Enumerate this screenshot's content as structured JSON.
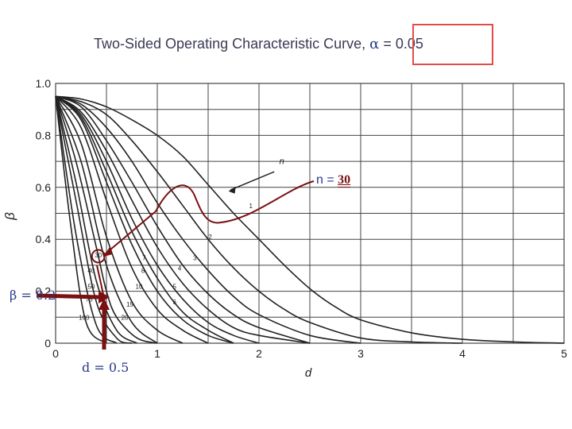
{
  "title_prefix": "Two-Sided Operating Characteristic Curve,",
  "title_alpha_symbol": "α",
  "title_alpha_value": " = 0.05",
  "annotation_n_prefix": "n = ",
  "annotation_n_value": "30",
  "annotation_beta": "β = 0.2",
  "annotation_d": "d = 0.5",
  "colors": {
    "curve": "#222222",
    "grid": "#444444",
    "annotation": "#7a1010",
    "annotation_text": "#283a8a",
    "highlight_box": "#e34b4b"
  },
  "chart_data": {
    "type": "line",
    "title": "Two-Sided Operating Characteristic Curve, α = 0.05",
    "xlabel": "d",
    "ylabel": "β",
    "xlim": [
      0,
      5
    ],
    "ylim": [
      0,
      1.0
    ],
    "x_ticks": [
      "0",
      "1",
      "2",
      "3",
      "4",
      "5"
    ],
    "y_ticks": [
      "0",
      "0.2",
      "0.4",
      "0.6",
      "0.8",
      "1.0"
    ],
    "grid": true,
    "arrow_label": "n",
    "series": [
      {
        "name": "1",
        "x": [
          0,
          0.25,
          0.5,
          0.75,
          1.0,
          1.25,
          1.5,
          1.75,
          2.0,
          2.25,
          2.5,
          2.75,
          3.0,
          3.5,
          4.0,
          4.5,
          5.0
        ],
        "values": [
          0.95,
          0.94,
          0.91,
          0.86,
          0.8,
          0.72,
          0.61,
          0.5,
          0.4,
          0.3,
          0.21,
          0.14,
          0.09,
          0.04,
          0.015,
          0.005,
          0
        ]
      },
      {
        "name": "2",
        "x": [
          0,
          0.25,
          0.5,
          0.75,
          1.0,
          1.25,
          1.5,
          1.75,
          2.0,
          2.25,
          2.5,
          3.0,
          3.5,
          4.0
        ],
        "values": [
          0.95,
          0.93,
          0.88,
          0.78,
          0.66,
          0.53,
          0.4,
          0.29,
          0.2,
          0.13,
          0.08,
          0.02,
          0.005,
          0
        ]
      },
      {
        "name": "3",
        "x": [
          0,
          0.25,
          0.5,
          0.75,
          1.0,
          1.25,
          1.5,
          1.75,
          2.0,
          2.5,
          3.0
        ],
        "values": [
          0.95,
          0.92,
          0.83,
          0.7,
          0.54,
          0.4,
          0.28,
          0.18,
          0.11,
          0.03,
          0
        ]
      },
      {
        "name": "4",
        "x": [
          0,
          0.25,
          0.5,
          0.75,
          1.0,
          1.25,
          1.5,
          1.75,
          2.0,
          2.5
        ],
        "values": [
          0.95,
          0.91,
          0.78,
          0.62,
          0.45,
          0.3,
          0.19,
          0.11,
          0.06,
          0
        ]
      },
      {
        "name": "5",
        "x": [
          0,
          0.25,
          0.5,
          0.75,
          1.0,
          1.25,
          1.5,
          1.75,
          2.0,
          2.5
        ],
        "values": [
          0.95,
          0.89,
          0.74,
          0.55,
          0.37,
          0.23,
          0.13,
          0.06,
          0.03,
          0
        ]
      },
      {
        "name": "6",
        "x": [
          0,
          0.25,
          0.5,
          0.75,
          1.0,
          1.25,
          1.5,
          1.75,
          2.0
        ],
        "values": [
          0.95,
          0.88,
          0.7,
          0.48,
          0.3,
          0.17,
          0.08,
          0.03,
          0
        ]
      },
      {
        "name": "7",
        "x": [
          0,
          0.25,
          0.5,
          0.75,
          1.0,
          1.25,
          1.5,
          1.75
        ],
        "values": [
          0.95,
          0.87,
          0.66,
          0.43,
          0.25,
          0.12,
          0.05,
          0
        ]
      },
      {
        "name": "8",
        "x": [
          0,
          0.25,
          0.5,
          0.75,
          1.0,
          1.25,
          1.5,
          1.75
        ],
        "values": [
          0.95,
          0.86,
          0.62,
          0.38,
          0.2,
          0.09,
          0.03,
          0
        ]
      },
      {
        "name": "10",
        "x": [
          0,
          0.25,
          0.5,
          0.75,
          1.0,
          1.25,
          1.5
        ],
        "values": [
          0.95,
          0.83,
          0.55,
          0.29,
          0.13,
          0.05,
          0
        ]
      },
      {
        "name": "15",
        "x": [
          0,
          0.25,
          0.5,
          0.75,
          1.0,
          1.25
        ],
        "values": [
          0.95,
          0.77,
          0.41,
          0.16,
          0.05,
          0
        ]
      },
      {
        "name": "20",
        "x": [
          0,
          0.25,
          0.5,
          0.75,
          1.0
        ],
        "values": [
          0.95,
          0.7,
          0.3,
          0.08,
          0
        ]
      },
      {
        "name": "30",
        "x": [
          0,
          0.2,
          0.4,
          0.5,
          0.6,
          0.8,
          1.0
        ],
        "values": [
          0.95,
          0.7,
          0.37,
          0.2,
          0.1,
          0.02,
          0
        ]
      },
      {
        "name": "40",
        "x": [
          0,
          0.2,
          0.4,
          0.6,
          0.8
        ],
        "values": [
          0.95,
          0.62,
          0.24,
          0.05,
          0
        ]
      },
      {
        "name": "50",
        "x": [
          0,
          0.2,
          0.4,
          0.6,
          0.75
        ],
        "values": [
          0.95,
          0.55,
          0.16,
          0.02,
          0
        ]
      },
      {
        "name": "75",
        "x": [
          0,
          0.2,
          0.4,
          0.6
        ],
        "values": [
          0.95,
          0.42,
          0.07,
          0
        ]
      },
      {
        "name": "100",
        "x": [
          0,
          0.15,
          0.3,
          0.5
        ],
        "values": [
          0.95,
          0.45,
          0.08,
          0
        ]
      }
    ]
  }
}
